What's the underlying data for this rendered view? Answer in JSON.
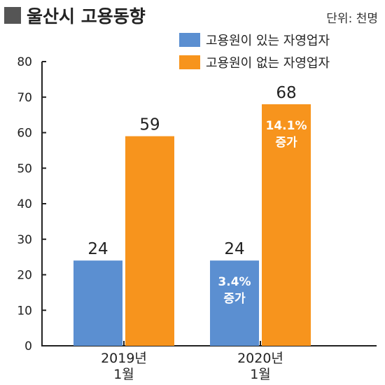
{
  "header": {
    "title": "울산시 고용동향",
    "unit": "단위: 천명"
  },
  "colors": {
    "series1": "#5b8fd1",
    "series2": "#f7941d",
    "axis": "#222222",
    "title_square": "#555555"
  },
  "chart_data": {
    "type": "bar",
    "title": "울산시 고용동향",
    "unit": "단위: 천명",
    "categories": [
      [
        "2019년",
        "1월"
      ],
      [
        "2020년",
        "1월"
      ]
    ],
    "series": [
      {
        "name": "고용원이 있는 자영업자",
        "values": [
          24,
          24
        ]
      },
      {
        "name": "고용원이 없는 자영업자",
        "values": [
          59,
          68
        ]
      }
    ],
    "annotations": [
      {
        "category": 1,
        "series": 0,
        "lines": [
          "3.4%",
          "증가"
        ]
      },
      {
        "category": 1,
        "series": 1,
        "lines": [
          "14.1%",
          "증가"
        ]
      }
    ],
    "ylim": [
      0,
      80
    ],
    "yticks": [
      0,
      10,
      20,
      30,
      40,
      50,
      60,
      70,
      80
    ],
    "legend": "top-right",
    "grid": false
  }
}
